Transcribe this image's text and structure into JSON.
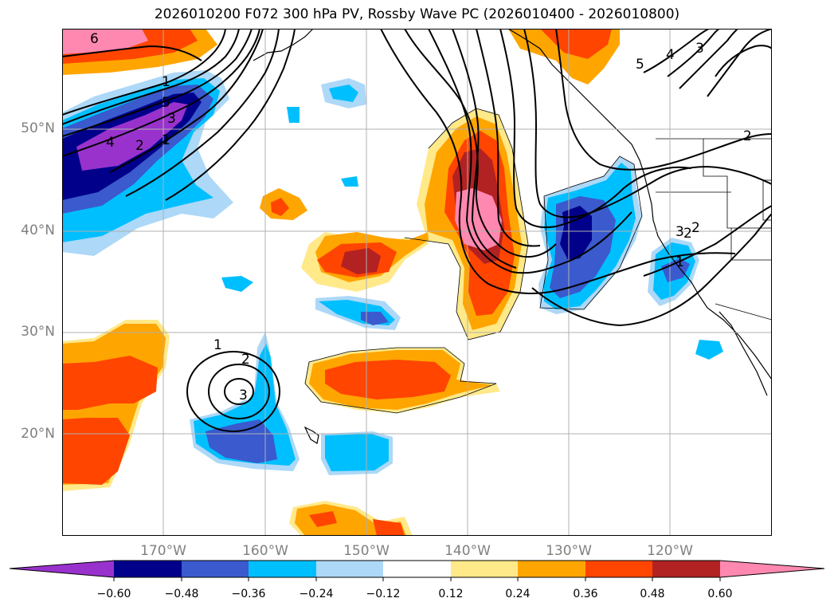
{
  "title": "2026010200 F072 300 hPa PV, Rossby Wave PC (2026010400 - 2026010800)",
  "map": {
    "lat_labels": [
      "50°N",
      "40°N",
      "30°N",
      "20°N"
    ],
    "lon_labels": [
      "170°W",
      "160°W",
      "150°W",
      "140°W",
      "130°W",
      "120°W"
    ],
    "contour_labels": [
      "6",
      "5",
      "4",
      "3",
      "2",
      "1",
      "3",
      "2",
      "1",
      "3",
      "2",
      "1",
      "5",
      "4",
      "3",
      "2",
      "2",
      "1"
    ]
  },
  "colorbar": {
    "colors": [
      "#9932cc",
      "#00008b",
      "#3a5acd",
      "#00bfff",
      "#add8f7",
      "#ffffff",
      "#ffe989",
      "#ffa500",
      "#ff4500",
      "#b22222",
      "#ff88b0"
    ],
    "tick_labels": [
      "−0.60",
      "−0.48",
      "−0.36",
      "−0.24",
      "−0.12",
      "0.12",
      "0.24",
      "0.36",
      "0.48",
      "0.60"
    ]
  },
  "colors": {
    "grid": "#b0b0b0",
    "axis_label": "#808080",
    "contour": "#000000"
  }
}
